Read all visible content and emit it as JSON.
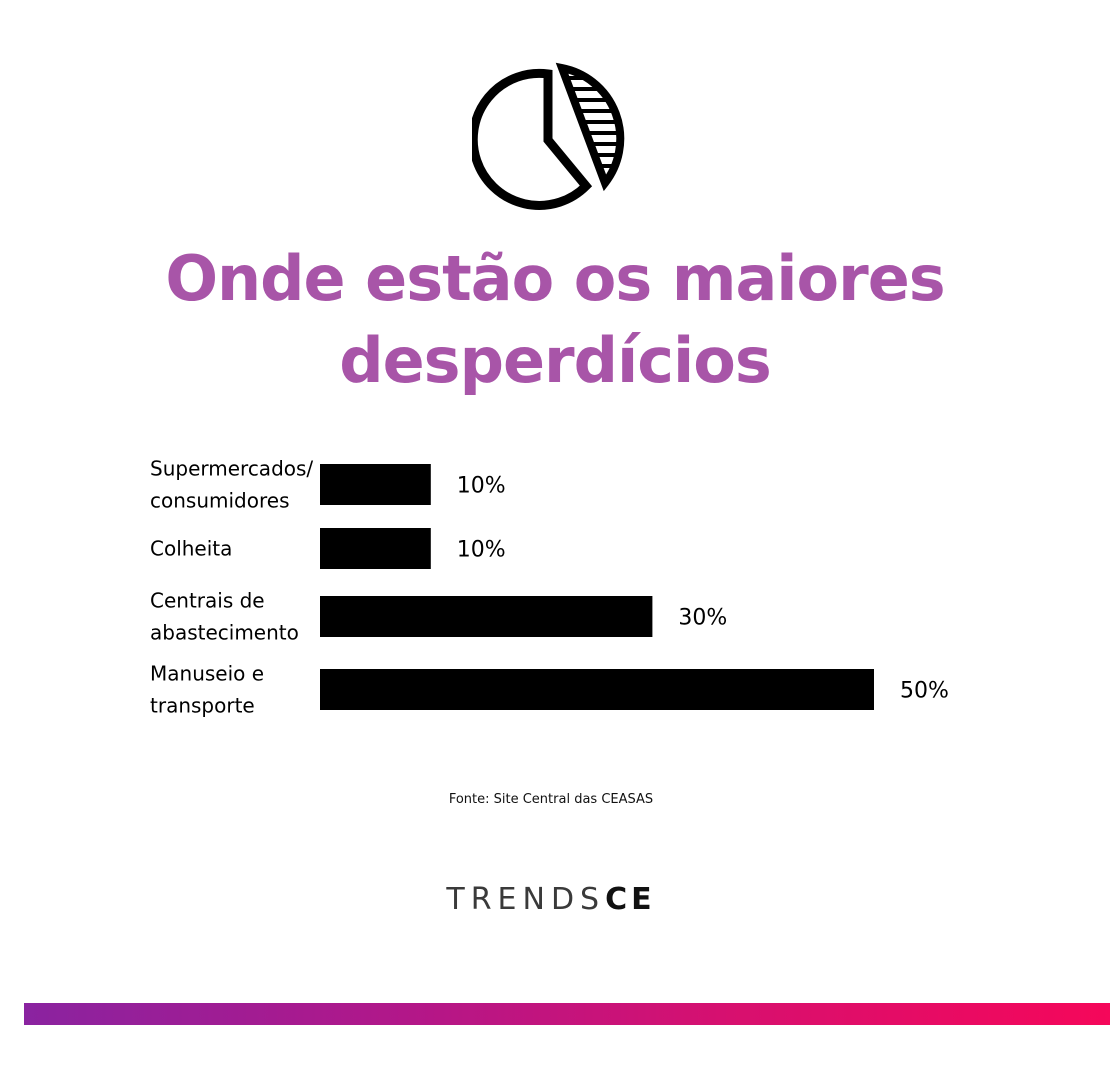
{
  "title_lines": [
    "Onde estão os maiores",
    "desperdícios"
  ],
  "colors": {
    "title": "#a855a8",
    "bar": "#000000",
    "gradient_start": "#8a23a0",
    "gradient_end": "#f5075a"
  },
  "icons": {
    "header": "pie-chart-icon"
  },
  "source": "Fonte: Site Central das CEASAS",
  "logo": {
    "light": "TRENDS",
    "bold": "CE"
  },
  "chart_data": {
    "type": "bar",
    "orientation": "horizontal",
    "title": "Onde estão os maiores desperdícios",
    "categories": [
      [
        "Supermercados/",
        "consumidores"
      ],
      [
        "Colheita"
      ],
      [
        "Centrais de",
        "abastecimento"
      ],
      [
        "Manuseio e",
        "transporte"
      ]
    ],
    "values": [
      10,
      10,
      30,
      50
    ],
    "value_labels": [
      "10%",
      "10%",
      "30%",
      "50%"
    ],
    "unit": "%",
    "xlim": [
      0,
      50
    ],
    "grid": false,
    "legend": "none"
  }
}
